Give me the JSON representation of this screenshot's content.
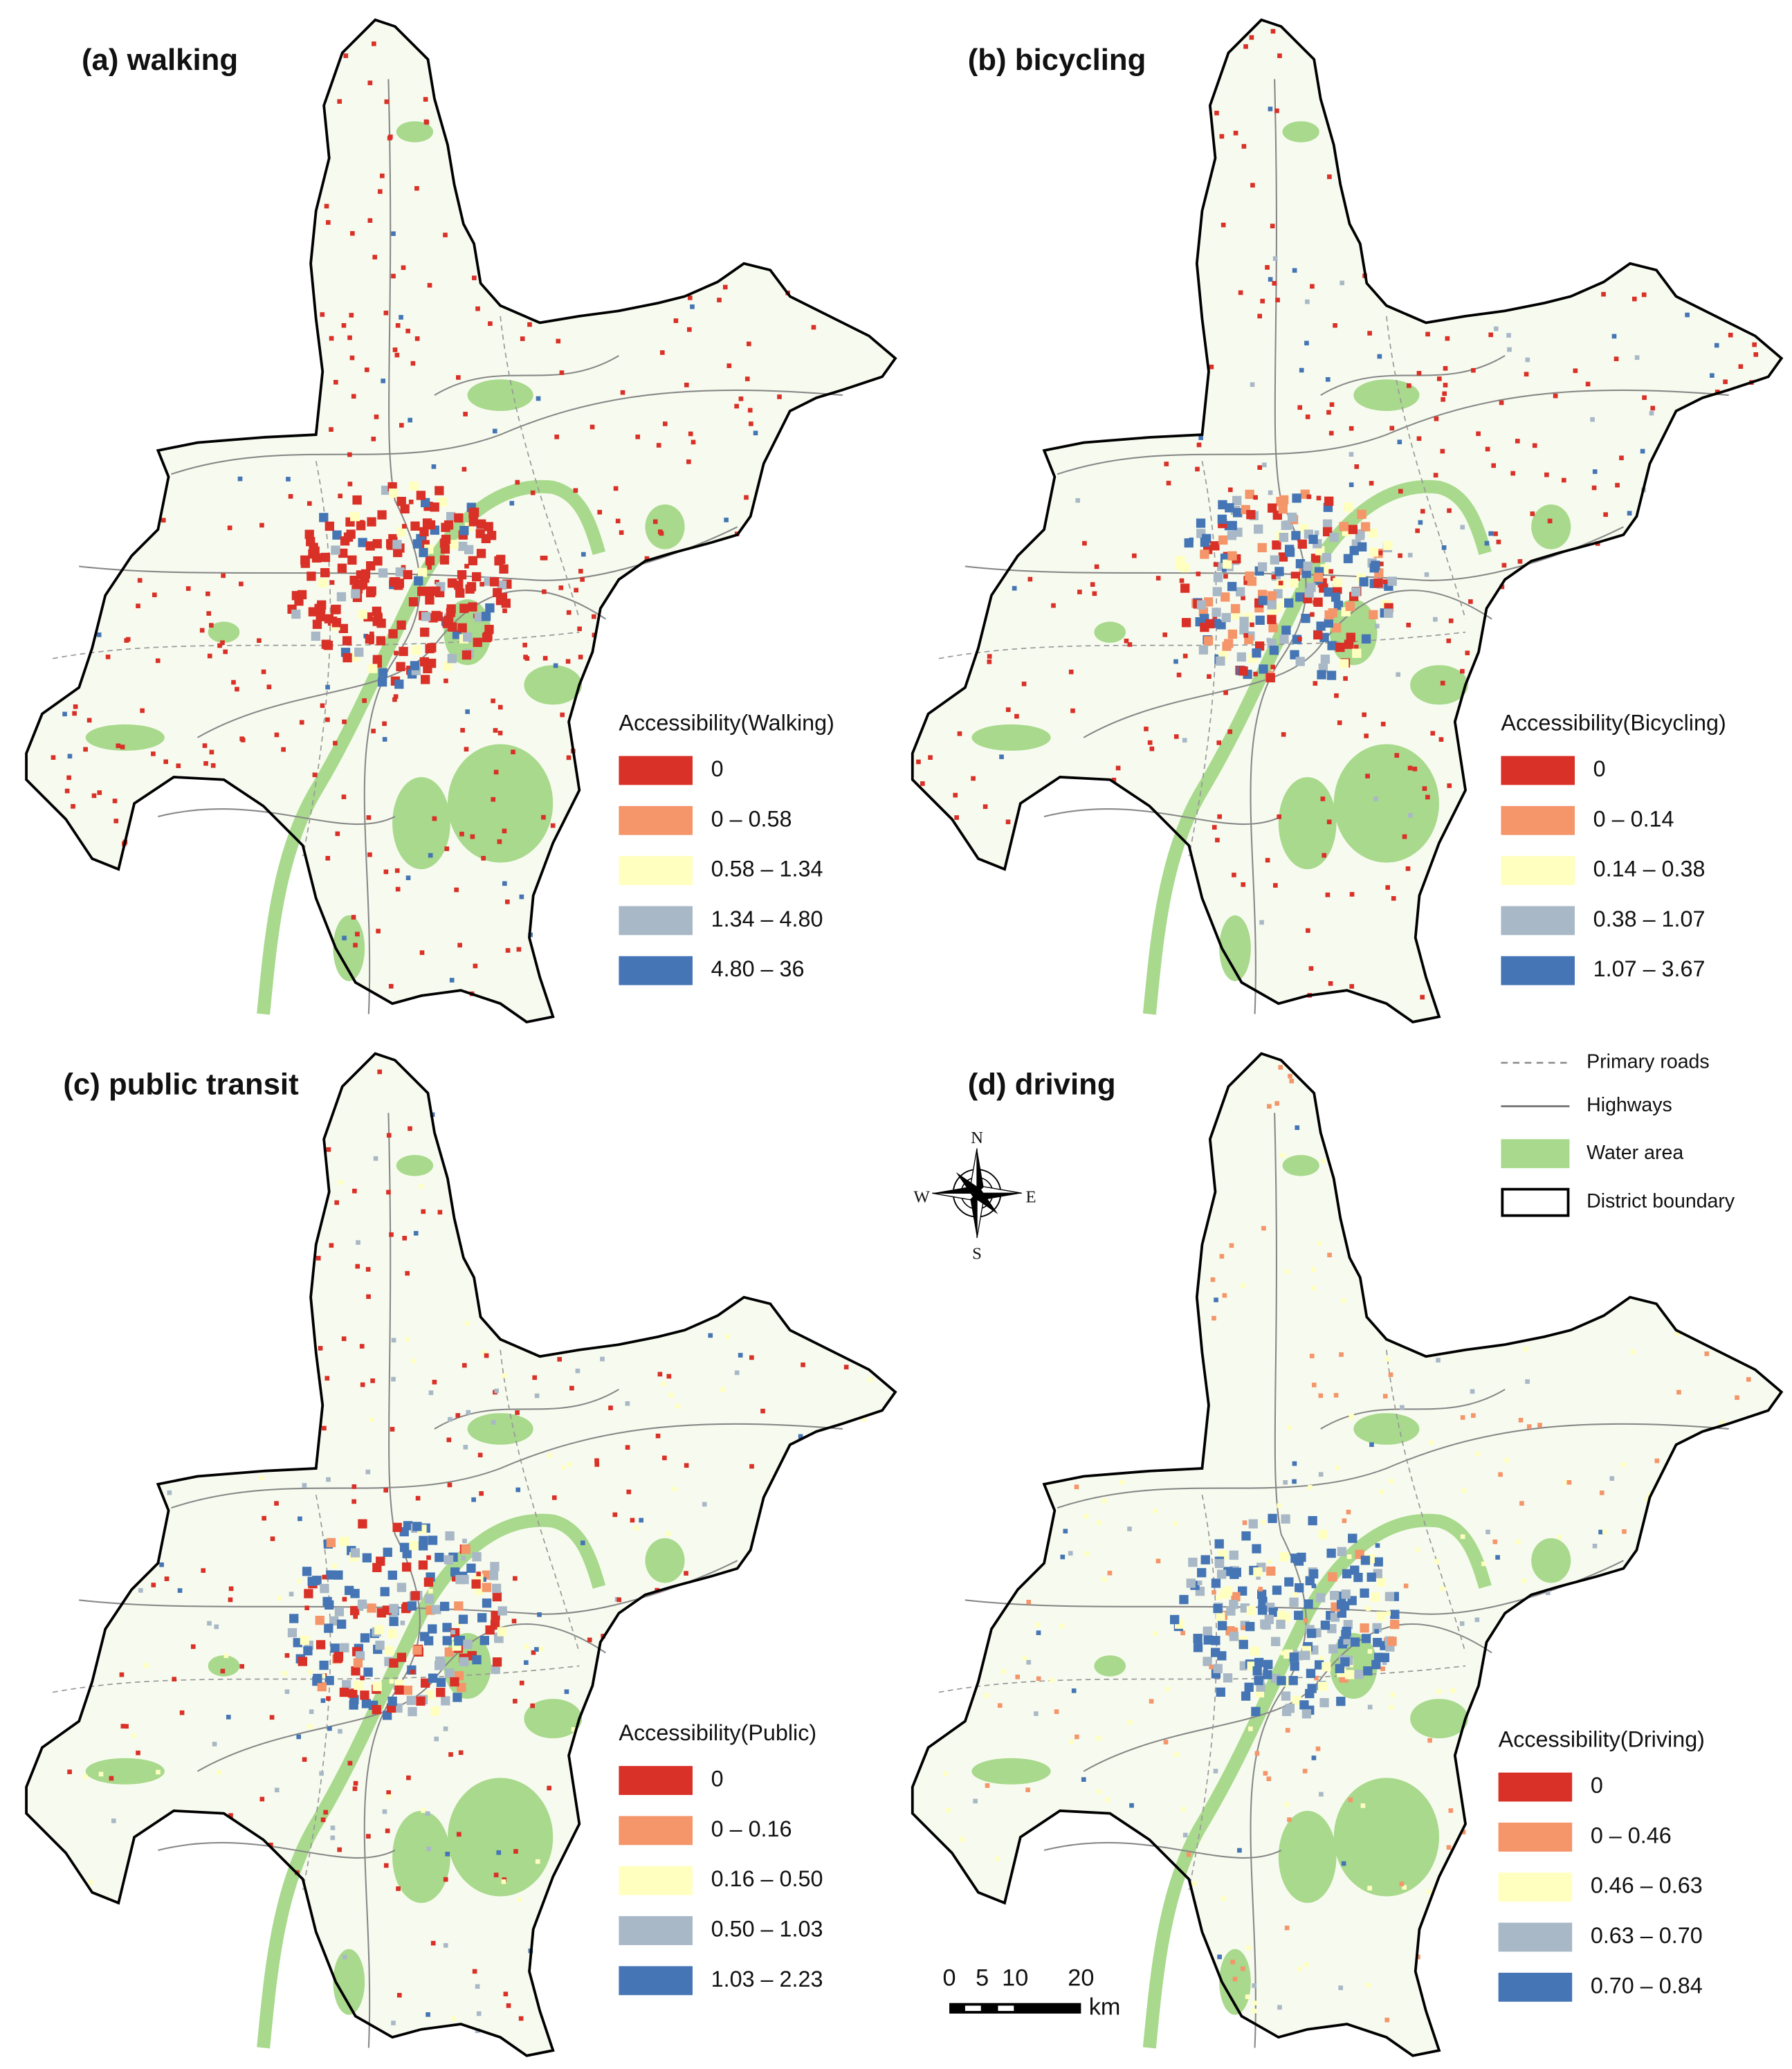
{
  "panels": [
    {
      "title": "(a) walking",
      "legend": {
        "title": "Accessibility(Walking)",
        "classes": [
          {
            "label": "0",
            "color": "#d93027"
          },
          {
            "label": "0 – 0.58",
            "color": "#f4956a"
          },
          {
            "label": "0.58 – 1.34",
            "color": "#ffffbf"
          },
          {
            "label": "1.34 – 4.80",
            "color": "#a9b8c6"
          },
          {
            "label": "4.80 – 36",
            "color": "#4575b4"
          }
        ]
      }
    },
    {
      "title": "(b) bicycling",
      "legend": {
        "title": "Accessibility(Bicycling)",
        "classes": [
          {
            "label": "0",
            "color": "#d93027"
          },
          {
            "label": "0 – 0.14",
            "color": "#f4956a"
          },
          {
            "label": "0.14 – 0.38",
            "color": "#ffffbf"
          },
          {
            "label": "0.38 – 1.07",
            "color": "#a9b8c6"
          },
          {
            "label": "1.07 – 3.67",
            "color": "#4575b4"
          }
        ]
      }
    },
    {
      "title": "(c) public transit",
      "legend": {
        "title": "Accessibility(Public)",
        "classes": [
          {
            "label": "0",
            "color": "#d93027"
          },
          {
            "label": "0 – 0.16",
            "color": "#f4956a"
          },
          {
            "label": "0.16 – 0.50",
            "color": "#ffffbf"
          },
          {
            "label": "0.50 – 1.03",
            "color": "#a9b8c6"
          },
          {
            "label": "1.03 – 2.23",
            "color": "#4575b4"
          }
        ]
      }
    },
    {
      "title": "(d) driving",
      "legend": {
        "title": "Accessibility(Driving)",
        "classes": [
          {
            "label": "0",
            "color": "#d93027"
          },
          {
            "label": "0 – 0.46",
            "color": "#f4956a"
          },
          {
            "label": "0.46 – 0.63",
            "color": "#ffffbf"
          },
          {
            "label": "0.63 – 0.70",
            "color": "#a9b8c6"
          },
          {
            "label": "0.70 – 0.84",
            "color": "#4575b4"
          }
        ]
      }
    }
  ],
  "shared_legend": [
    {
      "label": "Primary roads"
    },
    {
      "label": "Highways"
    },
    {
      "label": "Water area"
    },
    {
      "label": "District boundary"
    }
  ],
  "compass": {
    "north": "N",
    "east": "E",
    "south": "S",
    "west": "W"
  },
  "scale_bar": {
    "ticks": [
      "0",
      "5",
      "10",
      "20"
    ],
    "unit": "km"
  }
}
